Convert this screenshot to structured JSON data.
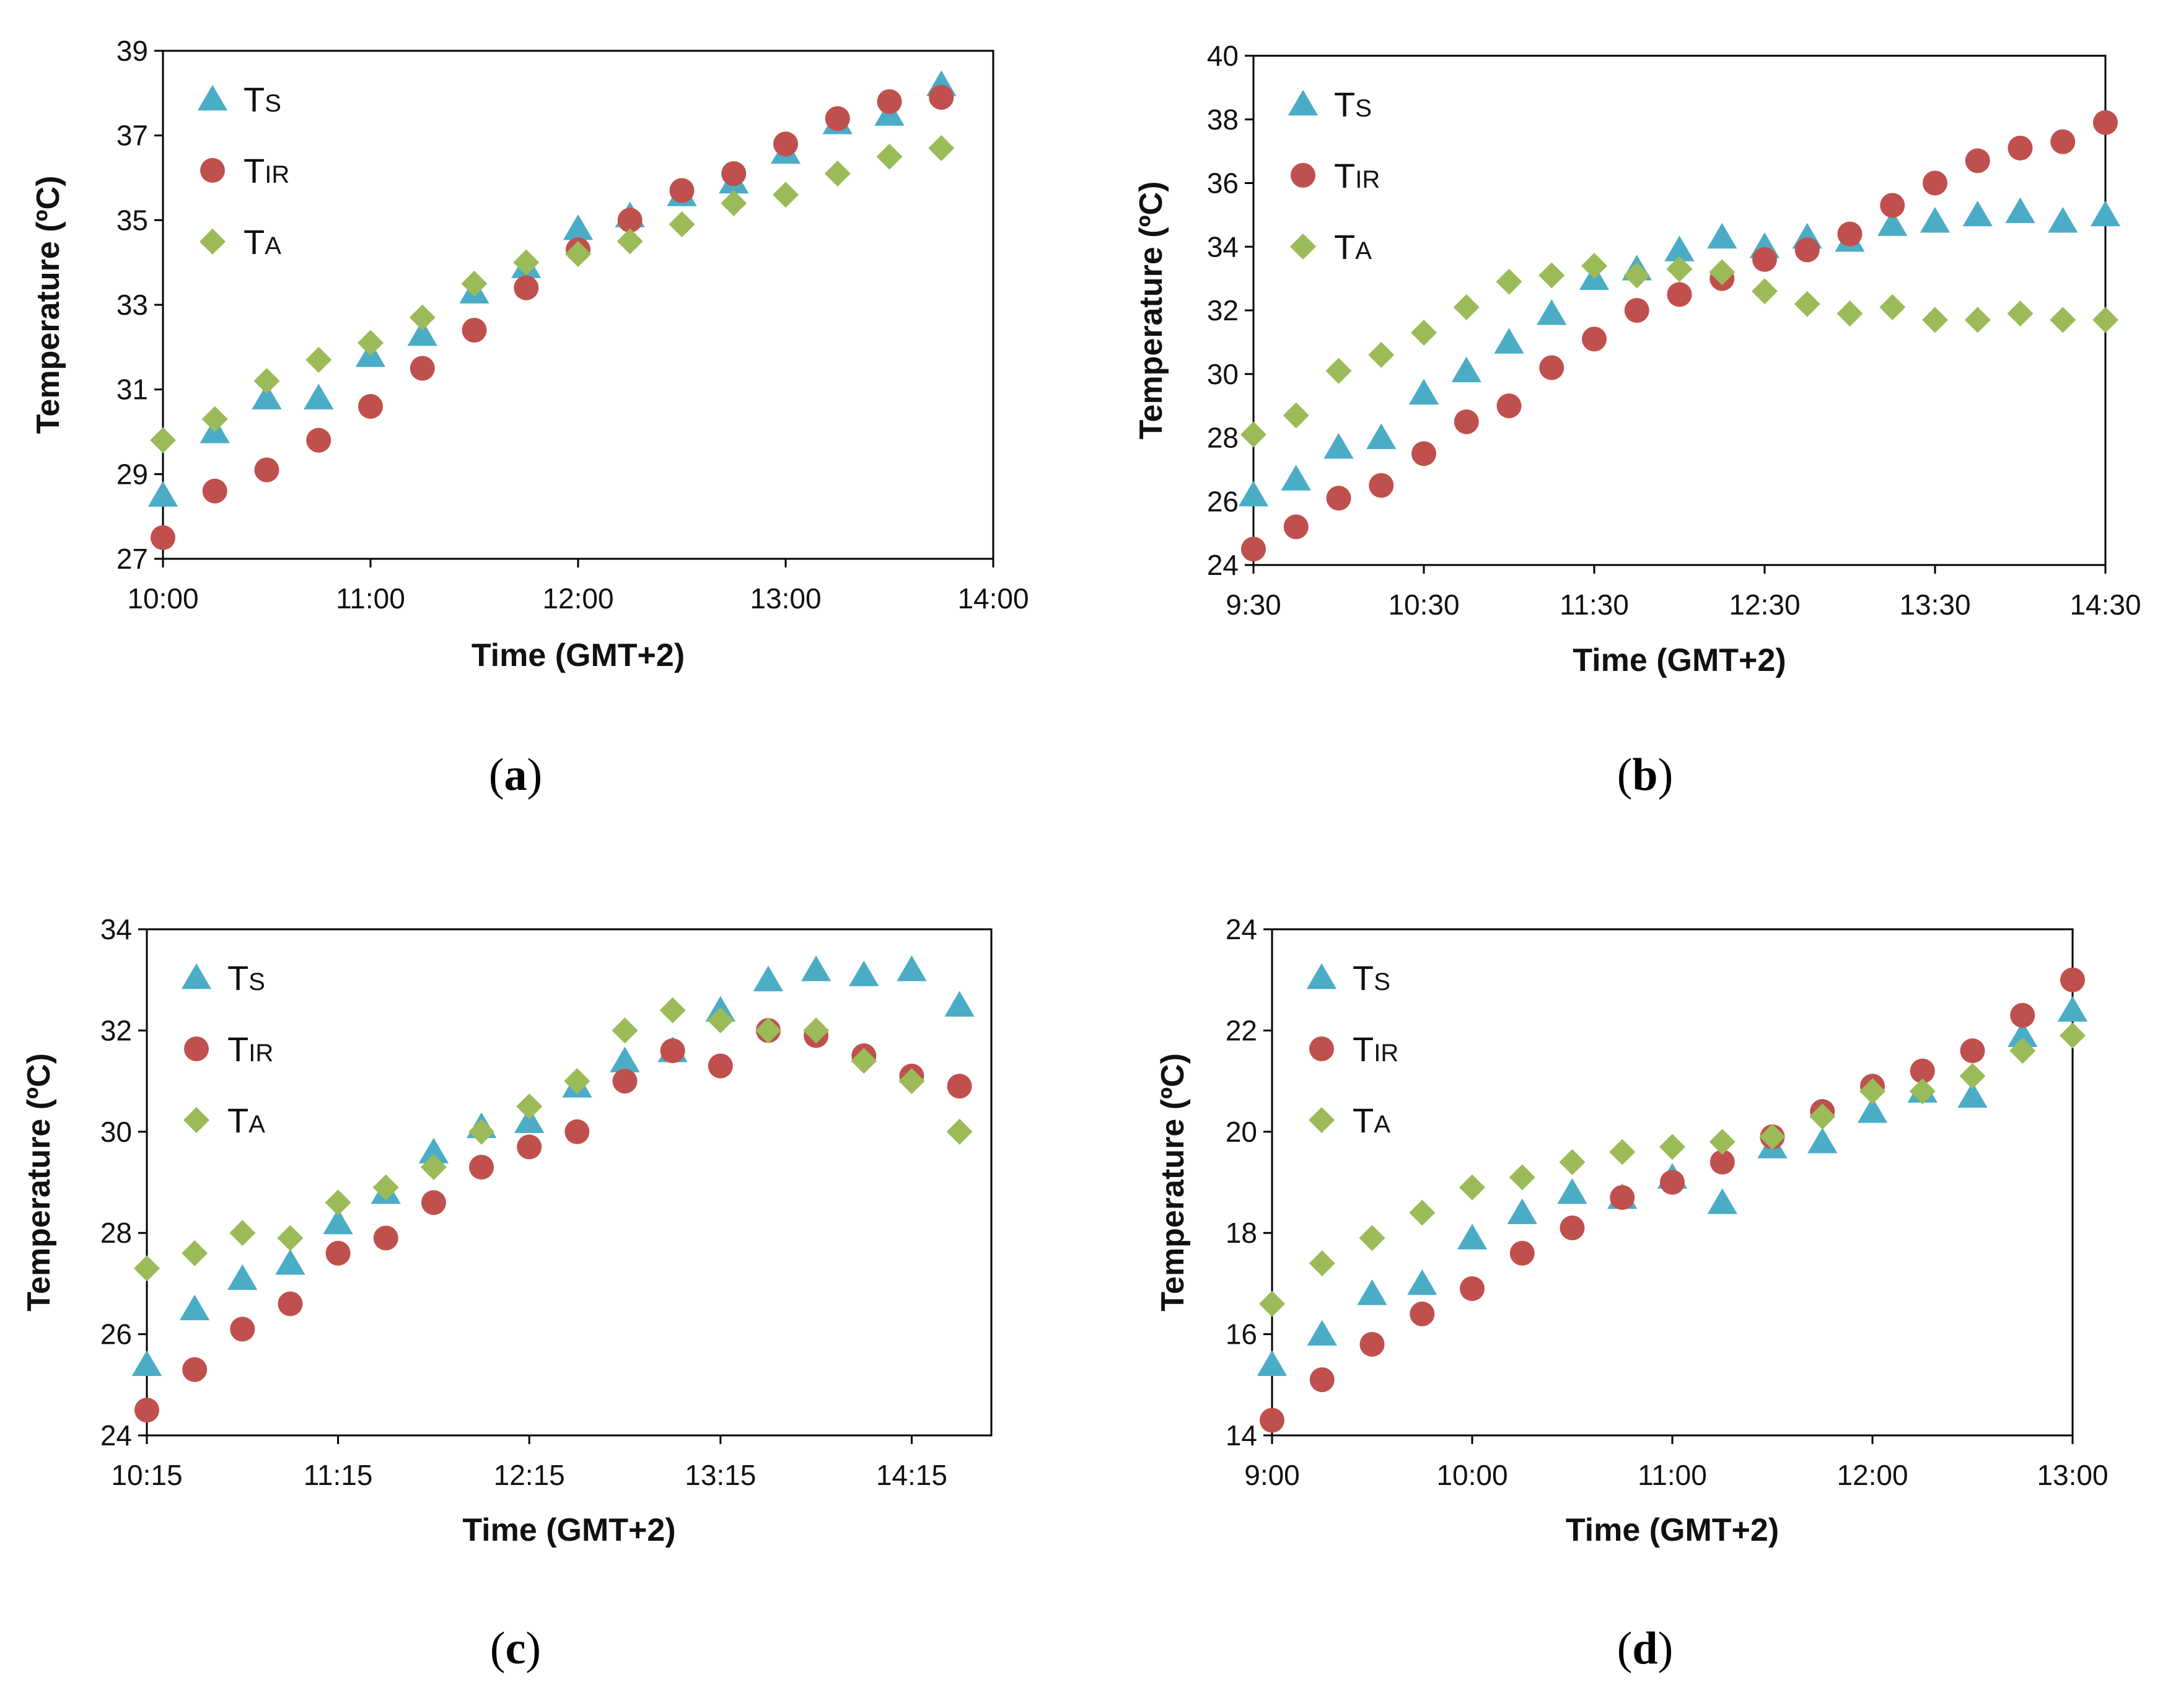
{
  "colors": {
    "Ts": "#4BACC6",
    "TIR": "#C0504D",
    "TA": "#9BBB59",
    "axis": "#000000"
  },
  "chart_data": [
    {
      "type": "scatter",
      "panel_label": "a",
      "xlabel": "Time (GMT+2)",
      "ylabel": "Temperature (ºC)",
      "x_ticks": [
        "10:00",
        "11:00",
        "12:00",
        "13:00",
        "14:00"
      ],
      "xlim_minutes": [
        600,
        840
      ],
      "x_step_minutes": 15,
      "y_ticks": [
        27,
        29,
        31,
        33,
        35,
        37,
        39
      ],
      "ylim": [
        27,
        39
      ],
      "grid": false,
      "legend_position": "top-left",
      "series": [
        {
          "name": "Ts",
          "main": "T",
          "sub": "S",
          "marker": "triangle",
          "x_start": "10:00",
          "values": [
            28.5,
            30.0,
            30.8,
            30.8,
            31.8,
            32.3,
            33.3,
            33.9,
            34.8,
            35.1,
            35.6,
            35.9,
            36.6,
            37.3,
            37.5,
            38.2
          ]
        },
        {
          "name": "TIR",
          "main": "T",
          "sub": "IR",
          "marker": "circle",
          "x_start": "10:00",
          "values": [
            27.5,
            28.6,
            29.1,
            29.8,
            30.6,
            31.5,
            32.4,
            33.4,
            34.3,
            35.0,
            35.7,
            36.1,
            36.8,
            37.4,
            37.8,
            37.9
          ]
        },
        {
          "name": "TA",
          "main": "T",
          "sub": "A",
          "marker": "diamond",
          "x_start": "10:00",
          "values": [
            29.8,
            30.3,
            31.2,
            31.7,
            32.1,
            32.7,
            33.5,
            34.0,
            34.2,
            34.5,
            34.9,
            35.4,
            35.6,
            36.1,
            36.5,
            36.7
          ]
        }
      ]
    },
    {
      "type": "scatter",
      "panel_label": "b",
      "xlabel": "Time (GMT+2)",
      "ylabel": "Temperature (ºC)",
      "x_ticks": [
        "9:30",
        "10:30",
        "11:30",
        "12:30",
        "13:30",
        "14:30"
      ],
      "xlim_minutes": [
        570,
        870
      ],
      "x_step_minutes": 15,
      "y_ticks": [
        24,
        26,
        28,
        30,
        32,
        34,
        36,
        38,
        40
      ],
      "ylim": [
        24,
        40
      ],
      "grid": false,
      "legend_position": "top-left",
      "series": [
        {
          "name": "Ts",
          "main": "T",
          "sub": "S",
          "marker": "triangle",
          "x_start": "9:30",
          "values": [
            26.2,
            26.7,
            27.7,
            28.0,
            29.4,
            30.1,
            31.0,
            31.9,
            33.0,
            33.3,
            33.9,
            34.3,
            34.0,
            34.3,
            34.2,
            34.7,
            34.8,
            35.0,
            35.1,
            34.8,
            35.0
          ]
        },
        {
          "name": "TIR",
          "main": "T",
          "sub": "IR",
          "marker": "circle",
          "x_start": "9:30",
          "values": [
            24.5,
            25.2,
            26.1,
            26.5,
            27.5,
            28.5,
            29.0,
            30.2,
            31.1,
            32.0,
            32.5,
            33.0,
            33.6,
            33.9,
            34.4,
            35.3,
            36.0,
            36.7,
            37.1,
            37.3,
            37.9
          ]
        },
        {
          "name": "TA",
          "main": "T",
          "sub": "A",
          "marker": "diamond",
          "x_start": "9:30",
          "values": [
            28.1,
            28.7,
            30.1,
            30.6,
            31.3,
            32.1,
            32.9,
            33.1,
            33.4,
            33.1,
            33.3,
            33.2,
            32.6,
            32.2,
            31.9,
            32.1,
            31.7,
            31.7,
            31.9,
            31.7,
            31.7
          ]
        }
      ]
    },
    {
      "type": "scatter",
      "panel_label": "c",
      "xlabel": "Time (GMT+2)",
      "ylabel": "Temperature (ºC)",
      "x_ticks": [
        "10:15",
        "11:15",
        "12:15",
        "13:15",
        "14:15"
      ],
      "xlim_minutes": [
        615,
        880
      ],
      "x_step_minutes": 15,
      "y_ticks": [
        24,
        26,
        28,
        30,
        32,
        34
      ],
      "ylim": [
        24,
        34
      ],
      "grid": false,
      "legend_position": "top-left",
      "series": [
        {
          "name": "Ts",
          "main": "T",
          "sub": "S",
          "marker": "triangle",
          "x_start": "10:15",
          "values": [
            25.4,
            26.5,
            27.1,
            27.4,
            28.2,
            28.8,
            29.6,
            30.1,
            30.2,
            30.9,
            31.4,
            31.6,
            32.4,
            33.0,
            33.2,
            33.1,
            33.2,
            32.5
          ]
        },
        {
          "name": "TIR",
          "main": "T",
          "sub": "IR",
          "marker": "circle",
          "x_start": "10:15",
          "values": [
            24.5,
            25.3,
            26.1,
            26.6,
            27.6,
            27.9,
            28.6,
            29.3,
            29.7,
            30.0,
            31.0,
            31.6,
            31.3,
            32.0,
            31.9,
            31.5,
            31.1,
            30.9
          ]
        },
        {
          "name": "TA",
          "main": "T",
          "sub": "A",
          "marker": "diamond",
          "x_start": "10:15",
          "values": [
            27.3,
            27.6,
            28.0,
            27.9,
            28.6,
            28.9,
            29.3,
            30.0,
            30.5,
            31.0,
            32.0,
            32.4,
            32.2,
            32.0,
            32.0,
            31.4,
            31.0,
            30.0
          ]
        }
      ]
    },
    {
      "type": "scatter",
      "panel_label": "d",
      "xlabel": "Time (GMT+2)",
      "ylabel": "Temperature (ºC)",
      "x_ticks": [
        "9:00",
        "10:00",
        "11:00",
        "12:00",
        "13:00"
      ],
      "xlim_minutes": [
        540,
        780
      ],
      "x_step_minutes": 15,
      "y_ticks": [
        14,
        16,
        18,
        20,
        22,
        24
      ],
      "ylim": [
        14,
        24
      ],
      "grid": false,
      "legend_position": "top-left",
      "series": [
        {
          "name": "Ts",
          "main": "T",
          "sub": "S",
          "marker": "triangle",
          "x_start": "9:00",
          "values": [
            15.4,
            16.0,
            16.8,
            17.0,
            17.9,
            18.4,
            18.8,
            18.7,
            19.1,
            18.6,
            19.7,
            19.8,
            20.4,
            20.8,
            20.7,
            21.9,
            22.4
          ]
        },
        {
          "name": "TIR",
          "main": "T",
          "sub": "IR",
          "marker": "circle",
          "x_start": "9:00",
          "values": [
            14.3,
            15.1,
            15.8,
            16.4,
            16.9,
            17.6,
            18.1,
            18.7,
            19.0,
            19.4,
            19.9,
            20.4,
            20.9,
            21.2,
            21.6,
            22.3,
            23.0
          ]
        },
        {
          "name": "TA",
          "main": "T",
          "sub": "A",
          "marker": "diamond",
          "x_start": "9:00",
          "values": [
            16.6,
            17.4,
            17.9,
            18.4,
            18.9,
            19.1,
            19.4,
            19.6,
            19.7,
            19.8,
            19.9,
            20.3,
            20.8,
            20.8,
            21.1,
            21.6,
            21.9
          ]
        }
      ]
    }
  ]
}
